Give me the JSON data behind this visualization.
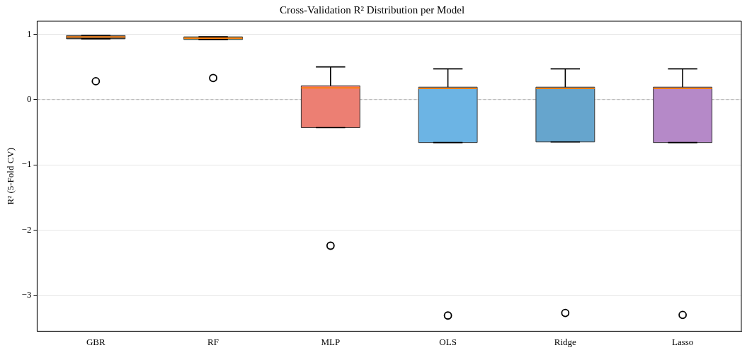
{
  "chart_data": {
    "type": "box",
    "title": "Cross-Validation R² Distribution per Model",
    "ylabel": "R² (5-Fold CV)",
    "categories": [
      "GBR",
      "RF",
      "MLP",
      "OLS",
      "Ridge",
      "Lasso"
    ],
    "colors": [
      "#3a4a50",
      "#2e9a5a",
      "#ec7f73",
      "#6cb4e4",
      "#66a5cd",
      "#b589c8"
    ],
    "boxes": [
      {
        "low": 0.93,
        "q1": 0.93,
        "median": 0.96,
        "q3": 0.98,
        "high": 0.98,
        "outliers": [
          0.28
        ]
      },
      {
        "low": 0.92,
        "q1": 0.92,
        "median": 0.94,
        "q3": 0.96,
        "high": 0.96,
        "outliers": [
          0.33
        ]
      },
      {
        "low": -0.43,
        "q1": -0.43,
        "median": 0.18,
        "q3": 0.21,
        "high": 0.5,
        "outliers": [
          -2.24
        ]
      },
      {
        "low": -0.66,
        "q1": -0.66,
        "median": 0.17,
        "q3": 0.19,
        "high": 0.47,
        "outliers": [
          -3.31
        ]
      },
      {
        "low": -0.65,
        "q1": -0.65,
        "median": 0.17,
        "q3": 0.19,
        "high": 0.47,
        "outliers": [
          -3.27
        ]
      },
      {
        "low": -0.66,
        "q1": -0.66,
        "median": 0.17,
        "q3": 0.19,
        "high": 0.47,
        "outliers": [
          -3.3
        ]
      }
    ],
    "ylim": [
      -3.55,
      1.2
    ],
    "yticks": [
      -3,
      -2,
      -1,
      0,
      1
    ],
    "grid": "y",
    "legend": false,
    "ref_lines": [
      {
        "axis": "y",
        "value": 0,
        "color": "#aaaaaa",
        "line_style": "dashed"
      }
    ]
  }
}
